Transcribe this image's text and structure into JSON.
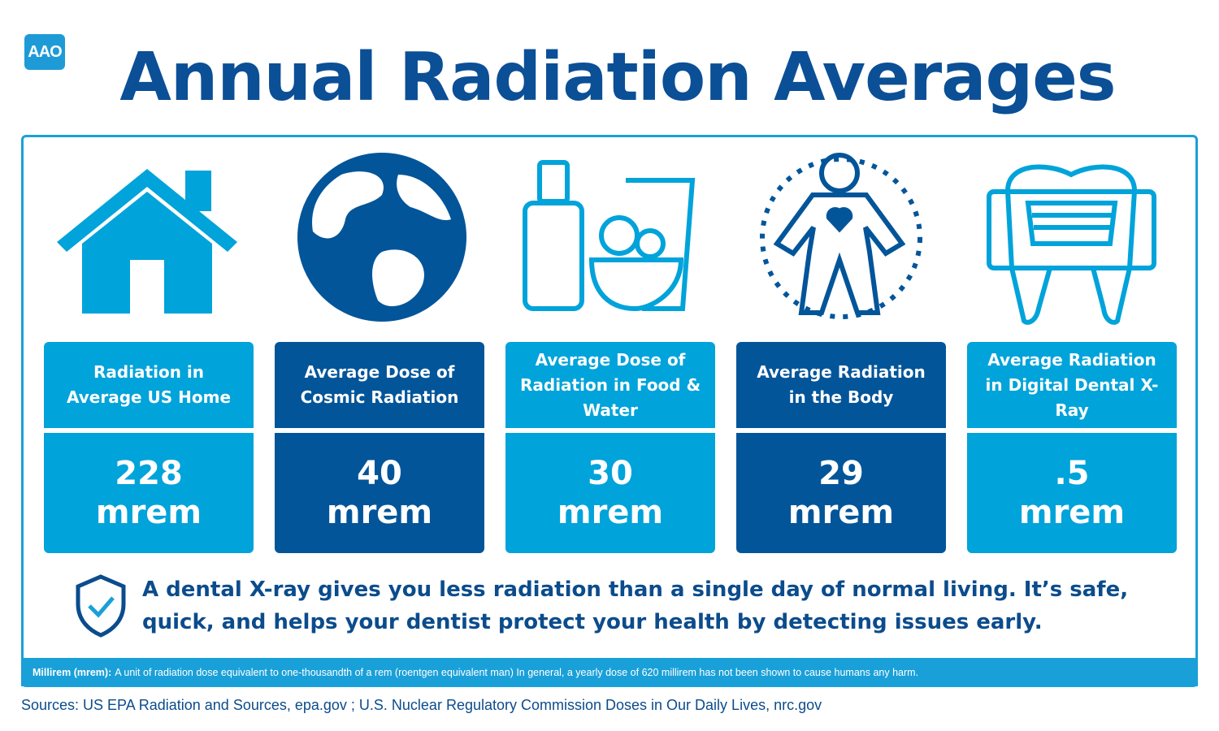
{
  "header": {
    "logo": "AAO",
    "title": "Annual Radiation Averages"
  },
  "cards": [
    {
      "label": "Radiation in Average US Home",
      "value": "228",
      "unit": "mrem"
    },
    {
      "label": "Average Dose of Cosmic Radiation",
      "value": "40",
      "unit": "mrem"
    },
    {
      "label": "Average Dose of Radiation in Food & Water",
      "value": "30",
      "unit": "mrem"
    },
    {
      "label": "Average Radiation in the Body",
      "value": "29",
      "unit": "mrem"
    },
    {
      "label": "Average Radiation in Digital Dental X-Ray",
      "value": ".5",
      "unit": "mrem"
    }
  ],
  "callout": "A dental X-ray gives you less radiation than a single day of normal living. It’s safe, quick, and helps your dentist protect your health by detecting issues early.",
  "footnote": {
    "term": "Millirem (mrem):",
    "definition": "A unit of radiation dose equivalent to one-thousandth of a rem (roentgen equivalent man) In general, a yearly dose of 620 millirem has not been shown to cause humans any harm."
  },
  "sources": "Sources: US EPA Radiation and Sources, epa.gov ; U.S. Nuclear Regulatory Commission Doses in Our Daily Lives, nrc.gov"
}
